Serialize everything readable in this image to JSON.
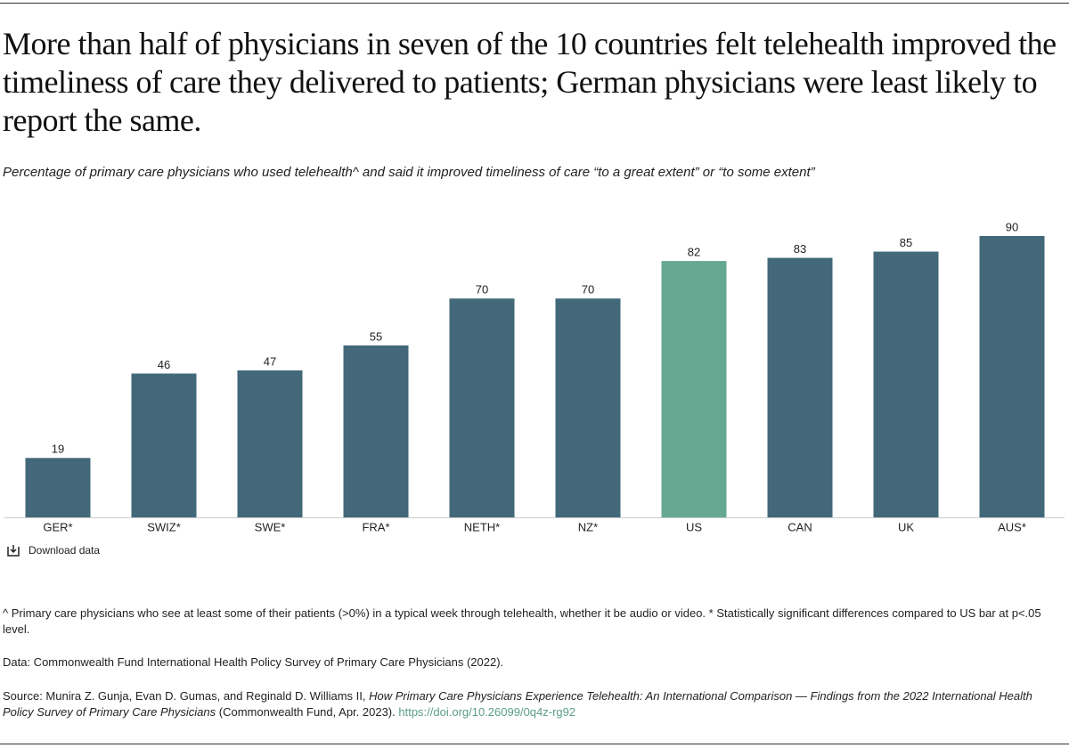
{
  "chart_data": {
    "type": "bar",
    "title": "More than half of physicians in seven of the 10 countries felt telehealth improved the timeliness of care they delivered to patients; German physicians were least likely to report the same.",
    "subtitle": "Percentage of primary care physicians who used telehealth^ and said it improved timeliness of care “to a great extent” or “to some extent”",
    "categories": [
      "GER*",
      "SWIZ*",
      "SWE*",
      "FRA*",
      "NETH*",
      "NZ*",
      "US",
      "CAN",
      "UK",
      "AUS*"
    ],
    "values": [
      19,
      46,
      47,
      55,
      70,
      70,
      82,
      83,
      85,
      90
    ],
    "colors": [
      "#42687a",
      "#42687a",
      "#42687a",
      "#42687a",
      "#42687a",
      "#42687a",
      "#66a892",
      "#42687a",
      "#42687a",
      "#42687a"
    ]
  },
  "download": "Download data",
  "notes": {
    "footnote": "^ Primary care physicians who see at least some of their patients (>0%) in a typical week through telehealth, whether it be audio or video. * Statistically significant differences compared to US bar at p<.05 level.",
    "data": "Data: Commonwealth Fund International Health Policy Survey of Primary Care Physicians (2022).",
    "source": [
      "Source: Munira Z. Gunja, Evan D. Gumas, and Reginald D. Williams II, ",
      "How Primary Care Physicians Experience Telehealth: An International Comparison — Findings from the 2022 International Health Policy Survey of Primary Care Physicians",
      " (Commonwealth Fund, Apr. 2023). ",
      "https://doi.org/10.26099/0q4z-rg92"
    ]
  }
}
